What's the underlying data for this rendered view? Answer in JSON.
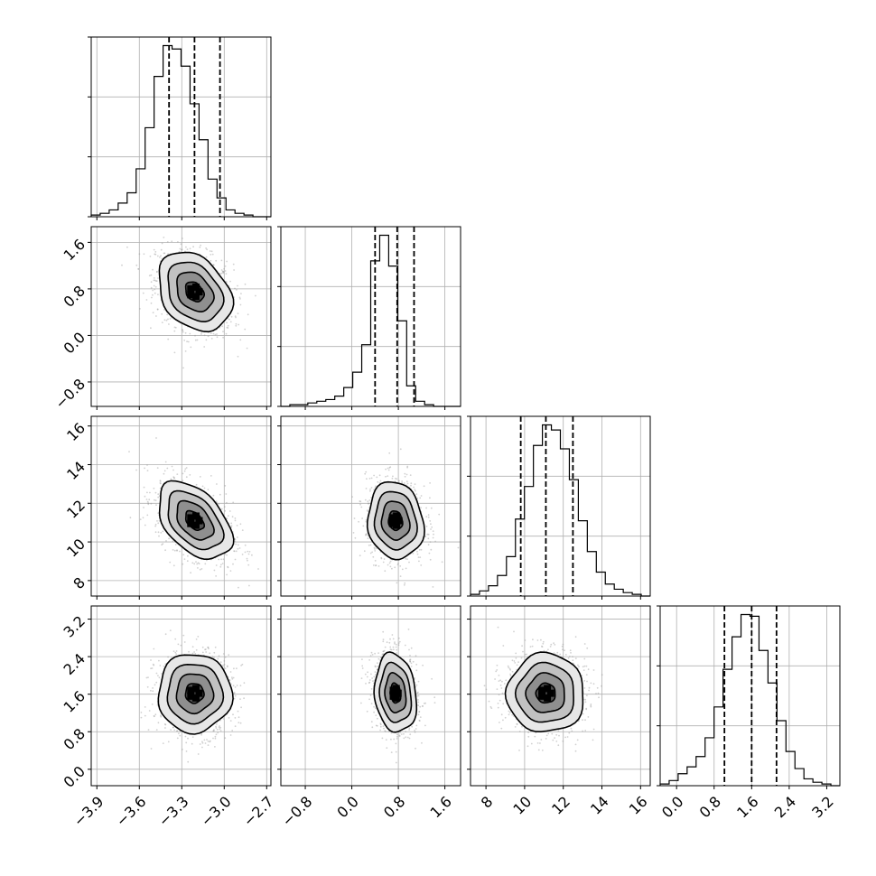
{
  "chart_data": {
    "type": "corner",
    "parameters": [
      {
        "ticks": [
          -3.9,
          -3.6,
          -3.3,
          -3.0,
          -2.7
        ],
        "tick_labels": [
          "−3.9",
          "−3.6",
          "−3.3",
          "−3.0",
          "−2.7"
        ],
        "range": [
          -3.94,
          -2.67
        ]
      },
      {
        "ticks": [
          -0.8,
          0.0,
          0.8,
          1.6
        ],
        "tick_labels": [
          "−0.8",
          "0.0",
          "0.8",
          "1.6"
        ],
        "range": [
          -1.22,
          1.87
        ]
      },
      {
        "ticks": [
          8,
          10,
          12,
          14,
          16
        ],
        "tick_labels": [
          "8",
          "10",
          "12",
          "14",
          "16"
        ],
        "range": [
          7.2,
          16.5
        ]
      },
      {
        "ticks": [
          0.0,
          0.8,
          1.6,
          2.4,
          3.2
        ],
        "tick_labels": [
          "0.0",
          "0.8",
          "1.6",
          "2.4",
          "3.2"
        ],
        "range": [
          -0.35,
          3.48
        ]
      }
    ],
    "histograms": [
      {
        "counts": [
          1,
          2,
          4,
          8,
          14,
          28,
          52,
          82,
          100,
          98,
          88,
          66,
          45,
          22,
          11,
          4,
          2,
          1,
          0,
          0
        ],
        "quantiles": [
          -3.39,
          -3.21,
          -3.03
        ],
        "ylim": [
          0,
          105
        ]
      },
      {
        "counts": [
          0,
          1,
          1,
          2,
          3,
          4,
          6,
          11,
          20,
          36,
          85,
          100,
          82,
          50,
          12,
          3,
          1,
          0,
          0,
          0
        ],
        "quantiles": [
          0.4,
          0.78,
          1.07
        ],
        "ylim": [
          0,
          105
        ]
      },
      {
        "counts": [
          1,
          3,
          6,
          12,
          23,
          45,
          64,
          88,
          100,
          97,
          86,
          68,
          44,
          26,
          14,
          7,
          4,
          2,
          1,
          0
        ],
        "quantiles": [
          9.8,
          11.1,
          12.5
        ],
        "ylim": [
          0,
          105
        ]
      },
      {
        "counts": [
          1,
          3,
          7,
          11,
          17,
          28,
          46,
          68,
          87,
          100,
          99,
          79,
          60,
          38,
          20,
          10,
          4,
          2,
          1,
          0
        ],
        "quantiles": [
          1.02,
          1.6,
          2.13
        ],
        "ylim": [
          0,
          105
        ]
      }
    ],
    "joint": [
      {
        "row": 1,
        "col": 0,
        "mean": [
          -3.21,
          0.75
        ],
        "sd": [
          0.13,
          0.34
        ],
        "rho": -0.3
      },
      {
        "row": 2,
        "col": 0,
        "mean": [
          -3.21,
          11.1
        ],
        "sd": [
          0.13,
          1.0
        ],
        "rho": -0.45
      },
      {
        "row": 2,
        "col": 1,
        "mean": [
          0.75,
          11.1
        ],
        "sd": [
          0.24,
          1.0
        ],
        "rho": -0.1
      },
      {
        "row": 3,
        "col": 0,
        "mean": [
          -3.21,
          1.62
        ],
        "sd": [
          0.13,
          0.42
        ],
        "rho": 0.0
      },
      {
        "row": 3,
        "col": 1,
        "mean": [
          0.75,
          1.62
        ],
        "sd": [
          0.18,
          0.42
        ],
        "rho": -0.15
      },
      {
        "row": 3,
        "col": 2,
        "mean": [
          11.1,
          1.62
        ],
        "sd": [
          1.0,
          0.42
        ],
        "rho": 0.0
      }
    ],
    "contour_levels_sigma": [
      0.5,
      1.0,
      1.5,
      2.0
    ],
    "grid": true,
    "colors": {
      "line": "#000000",
      "grid": "#b0b0b0",
      "scatter": "#9a9a9a",
      "density": "#000000"
    }
  }
}
